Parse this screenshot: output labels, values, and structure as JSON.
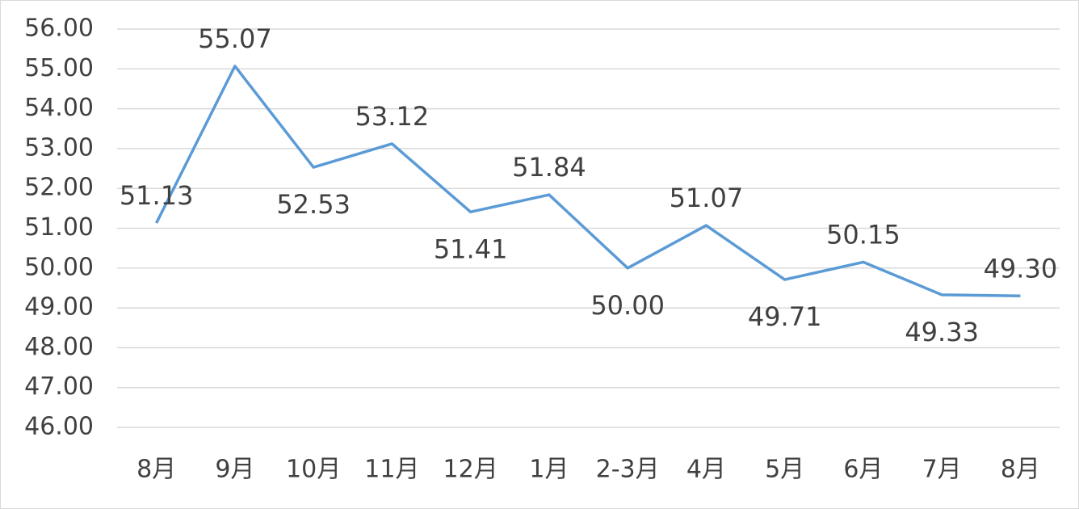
{
  "chart_data": {
    "type": "line",
    "categories": [
      "8月",
      "9月",
      "10月",
      "11月",
      "12月",
      "1月",
      "2-3月",
      "4月",
      "5月",
      "6月",
      "7月",
      "8月"
    ],
    "series": [
      {
        "color": "#5b9bd5",
        "values": [
          51.13,
          55.07,
          52.53,
          53.12,
          51.41,
          51.84,
          50.0,
          51.07,
          49.71,
          50.15,
          49.33,
          49.3
        ],
        "value_labels": [
          "51.13",
          "55.07",
          "52.53",
          "53.12",
          "51.41",
          "51.84",
          "50.00",
          "51.07",
          "49.71",
          "50.15",
          "49.33",
          "49.30"
        ]
      }
    ],
    "ylim": [
      46,
      56
    ],
    "yticks": [
      {
        "value": 46,
        "label": "46.00"
      },
      {
        "value": 47,
        "label": "47.00"
      },
      {
        "value": 48,
        "label": "48.00"
      },
      {
        "value": 49,
        "label": "49.00"
      },
      {
        "value": 50,
        "label": "50.00"
      },
      {
        "value": 51,
        "label": "51.00"
      },
      {
        "value": 52,
        "label": "52.00"
      },
      {
        "value": 53,
        "label": "53.00"
      },
      {
        "value": 54,
        "label": "54.00"
      },
      {
        "value": 55,
        "label": "55.00"
      },
      {
        "value": 56,
        "label": "56.00"
      }
    ],
    "grid": true
  }
}
